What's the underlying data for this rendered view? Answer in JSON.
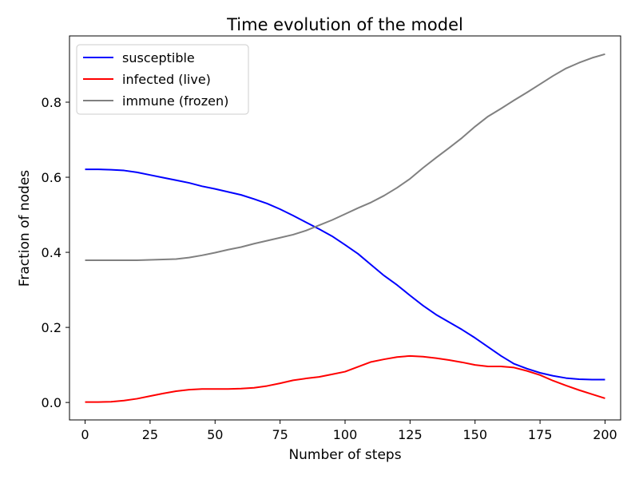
{
  "chart_data": {
    "type": "line",
    "title": "Time evolution of the model",
    "xlabel": "Number of steps",
    "ylabel": "Fraction of nodes",
    "xlim": [
      -6,
      206
    ],
    "ylim": [
      -0.0465,
      0.9765
    ],
    "xticks": [
      0,
      25,
      50,
      75,
      100,
      125,
      150,
      175,
      200
    ],
    "yticks": [
      0.0,
      0.2,
      0.4,
      0.6,
      0.8
    ],
    "xtick_labels": [
      "0",
      "25",
      "50",
      "75",
      "100",
      "125",
      "150",
      "175",
      "200"
    ],
    "ytick_labels": [
      "0.0",
      "0.2",
      "0.4",
      "0.6",
      "0.8"
    ],
    "grid": false,
    "legend_position": "top-left",
    "series": [
      {
        "name": "susceptible",
        "color": "#0000ff",
        "x": [
          0,
          5,
          10,
          15,
          20,
          25,
          30,
          35,
          40,
          45,
          50,
          55,
          60,
          65,
          70,
          75,
          80,
          85,
          90,
          95,
          100,
          105,
          110,
          115,
          120,
          125,
          130,
          135,
          140,
          145,
          150,
          155,
          160,
          165,
          170,
          175,
          180,
          185,
          190,
          195,
          200
        ],
        "y": [
          0.621,
          0.621,
          0.62,
          0.618,
          0.613,
          0.606,
          0.599,
          0.592,
          0.585,
          0.576,
          0.569,
          0.561,
          0.553,
          0.542,
          0.53,
          0.515,
          0.498,
          0.48,
          0.462,
          0.443,
          0.42,
          0.396,
          0.367,
          0.338,
          0.313,
          0.285,
          0.258,
          0.234,
          0.214,
          0.194,
          0.172,
          0.148,
          0.124,
          0.103,
          0.09,
          0.079,
          0.071,
          0.065,
          0.062,
          0.061,
          0.061
        ]
      },
      {
        "name": "infected (live)",
        "color": "#ff0000",
        "x": [
          0,
          5,
          10,
          15,
          20,
          25,
          30,
          35,
          40,
          45,
          50,
          55,
          60,
          65,
          70,
          75,
          80,
          85,
          90,
          95,
          100,
          105,
          110,
          115,
          120,
          125,
          130,
          135,
          140,
          145,
          150,
          155,
          160,
          165,
          170,
          175,
          180,
          185,
          190,
          195,
          200
        ],
        "y": [
          0.001,
          0.001,
          0.002,
          0.005,
          0.01,
          0.017,
          0.024,
          0.03,
          0.034,
          0.036,
          0.036,
          0.036,
          0.037,
          0.039,
          0.044,
          0.051,
          0.059,
          0.064,
          0.068,
          0.075,
          0.082,
          0.095,
          0.108,
          0.115,
          0.121,
          0.124,
          0.122,
          0.118,
          0.113,
          0.107,
          0.1,
          0.096,
          0.096,
          0.093,
          0.084,
          0.073,
          0.058,
          0.045,
          0.033,
          0.022,
          0.011
        ]
      },
      {
        "name": "immune (frozen)",
        "color": "#808080",
        "x": [
          0,
          5,
          10,
          15,
          20,
          25,
          30,
          35,
          40,
          45,
          50,
          55,
          60,
          65,
          70,
          75,
          80,
          85,
          90,
          95,
          100,
          105,
          110,
          115,
          120,
          125,
          130,
          135,
          140,
          145,
          150,
          155,
          160,
          165,
          170,
          175,
          180,
          185,
          190,
          195,
          200
        ],
        "y": [
          0.379,
          0.379,
          0.379,
          0.379,
          0.379,
          0.38,
          0.381,
          0.382,
          0.386,
          0.392,
          0.399,
          0.407,
          0.414,
          0.423,
          0.431,
          0.439,
          0.447,
          0.458,
          0.472,
          0.486,
          0.502,
          0.518,
          0.533,
          0.551,
          0.572,
          0.596,
          0.625,
          0.652,
          0.678,
          0.705,
          0.735,
          0.762,
          0.783,
          0.805,
          0.826,
          0.848,
          0.87,
          0.89,
          0.905,
          0.918,
          0.928
        ]
      }
    ]
  }
}
